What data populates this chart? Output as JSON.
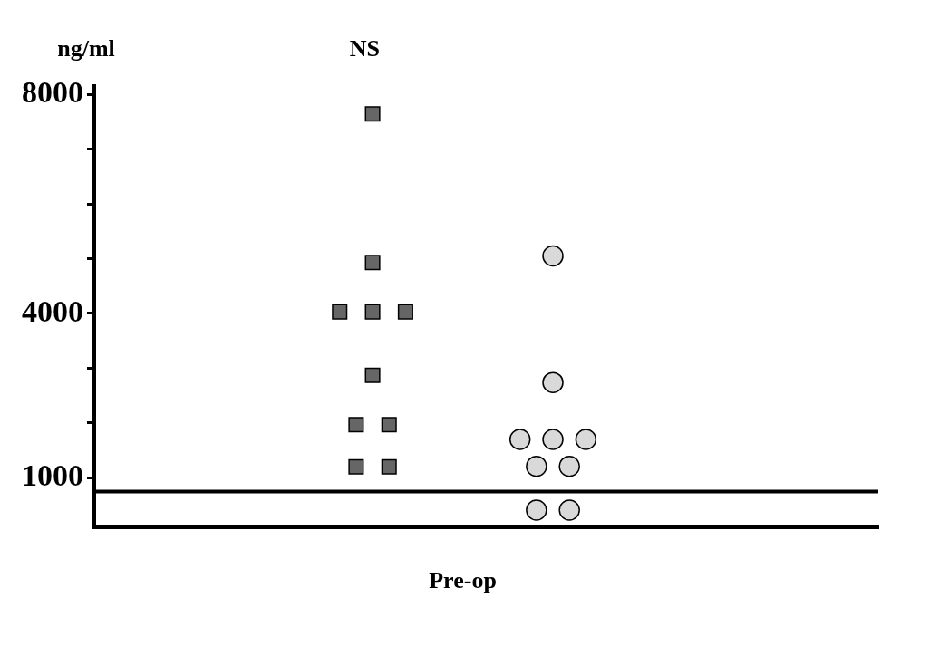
{
  "chart_data": {
    "type": "scatter",
    "ylabel": "ng/ml",
    "annotations": [
      "NS"
    ],
    "categories": [
      "Pre-op"
    ],
    "ylim": [
      100,
      8150
    ],
    "yticks": [
      1000,
      {
        "value": 2000,
        "label": null
      },
      {
        "value": 3000,
        "label": null
      },
      4000,
      {
        "value": 5000,
        "label": null
      },
      {
        "value": 6000,
        "label": null
      },
      {
        "value": 7000,
        "label": null
      },
      8000
    ],
    "grid": false,
    "ref_lines": [
      {
        "axis": "y",
        "value": 750,
        "color": "#000000"
      }
    ],
    "series": [
      {
        "color": "#666666",
        "marker": "square",
        "x": [
          "Pre-op",
          "Pre-op",
          "Pre-op",
          "Pre-op",
          "Pre-op",
          "Pre-op",
          "Pre-op",
          "Pre-op",
          "Pre-op",
          "Pre-op"
        ],
        "values": [
          7640,
          4930,
          4030,
          4030,
          4030,
          2870,
          1970,
          1970,
          1200,
          1200
        ]
      },
      {
        "color": "#d9d9d9",
        "marker": "circle",
        "x": [
          "Pre-op",
          "Pre-op",
          "Pre-op",
          "Pre-op",
          "Pre-op",
          "Pre-op",
          "Pre-op",
          "Pre-op",
          "Pre-op"
        ],
        "values": [
          5050,
          2740,
          1700,
          1700,
          1700,
          1210,
          1210,
          410,
          410
        ]
      }
    ]
  }
}
